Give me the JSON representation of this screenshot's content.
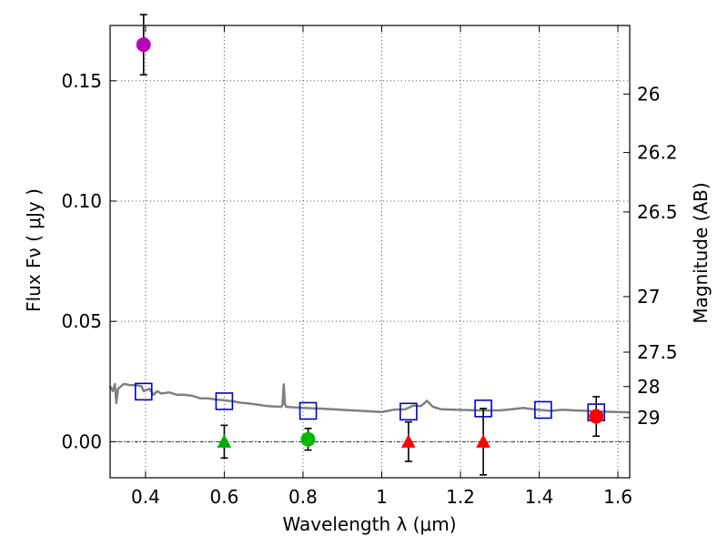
{
  "chart_data": {
    "type": "scatter",
    "xlabel": "Wavelength  λ (μm)",
    "ylabel_left": "Flux  Fν  ( μJy )",
    "ylabel_right": "Magnitude (AB)",
    "xlim": [
      0.31,
      1.63
    ],
    "ylim": [
      -0.015,
      0.173
    ],
    "x_ticks": [
      {
        "value": 0.4,
        "label": "0.4"
      },
      {
        "value": 0.6,
        "label": "0.6"
      },
      {
        "value": 0.8,
        "label": "0.8"
      },
      {
        "value": 1.0,
        "label": "1"
      },
      {
        "value": 1.2,
        "label": "1.2"
      },
      {
        "value": 1.4,
        "label": "1.4"
      },
      {
        "value": 1.6,
        "label": "1.6"
      }
    ],
    "y_ticks": [
      {
        "value": 0.0,
        "label": "0.00"
      },
      {
        "value": 0.05,
        "label": "0.05"
      },
      {
        "value": 0.1,
        "label": "0.10"
      },
      {
        "value": 0.15,
        "label": "0.15"
      }
    ],
    "right_ticks": [
      {
        "flux": 0.1445,
        "label": "26"
      },
      {
        "flux": 0.1202,
        "label": "26.2"
      },
      {
        "flux": 0.0955,
        "label": "26.5"
      },
      {
        "flux": 0.0603,
        "label": "27"
      },
      {
        "flux": 0.0372,
        "label": "27.5"
      },
      {
        "flux": 0.0229,
        "label": "28"
      },
      {
        "flux": 0.01,
        "label": "29"
      }
    ],
    "grid": true,
    "zero_line": true,
    "template_spectrum": {
      "color": "#808080",
      "points": [
        [
          0.31,
          0.023
        ],
        [
          0.317,
          0.021
        ],
        [
          0.322,
          0.024
        ],
        [
          0.326,
          0.016
        ],
        [
          0.33,
          0.022
        ],
        [
          0.345,
          0.024
        ],
        [
          0.36,
          0.0235
        ],
        [
          0.375,
          0.0235
        ],
        [
          0.39,
          0.023
        ],
        [
          0.395,
          0.021
        ],
        [
          0.41,
          0.022
        ],
        [
          0.42,
          0.0195
        ],
        [
          0.43,
          0.021
        ],
        [
          0.44,
          0.02
        ],
        [
          0.46,
          0.0205
        ],
        [
          0.48,
          0.0195
        ],
        [
          0.5,
          0.0195
        ],
        [
          0.52,
          0.019
        ],
        [
          0.54,
          0.018
        ],
        [
          0.56,
          0.018
        ],
        [
          0.58,
          0.0175
        ],
        [
          0.6,
          0.0172
        ],
        [
          0.62,
          0.0168
        ],
        [
          0.64,
          0.0162
        ],
        [
          0.66,
          0.0159
        ],
        [
          0.68,
          0.0155
        ],
        [
          0.7,
          0.015
        ],
        [
          0.72,
          0.0147
        ],
        [
          0.745,
          0.0145
        ],
        [
          0.748,
          0.0155
        ],
        [
          0.751,
          0.0238
        ],
        [
          0.754,
          0.0155
        ],
        [
          0.757,
          0.0145
        ],
        [
          0.78,
          0.0142
        ],
        [
          0.8,
          0.014
        ],
        [
          0.85,
          0.0137
        ],
        [
          0.9,
          0.0132
        ],
        [
          0.95,
          0.0128
        ],
        [
          0.98,
          0.0125
        ],
        [
          1.0,
          0.0123
        ],
        [
          1.01,
          0.0126
        ],
        [
          1.03,
          0.0133
        ],
        [
          1.06,
          0.0135
        ],
        [
          1.08,
          0.015
        ],
        [
          1.1,
          0.0148
        ],
        [
          1.115,
          0.017
        ],
        [
          1.13,
          0.0145
        ],
        [
          1.15,
          0.0135
        ],
        [
          1.2,
          0.0132
        ],
        [
          1.25,
          0.013
        ],
        [
          1.3,
          0.013
        ],
        [
          1.33,
          0.0135
        ],
        [
          1.36,
          0.014
        ],
        [
          1.37,
          0.0138
        ],
        [
          1.4,
          0.0132
        ],
        [
          1.43,
          0.0128
        ],
        [
          1.46,
          0.0133
        ],
        [
          1.49,
          0.013
        ],
        [
          1.52,
          0.0128
        ],
        [
          1.55,
          0.0125
        ],
        [
          1.6,
          0.0123
        ],
        [
          1.63,
          0.0122
        ]
      ]
    },
    "model_points": {
      "marker": "open-square",
      "color": "#0000cc",
      "points": [
        {
          "x": 0.395,
          "y": 0.0208
        },
        {
          "x": 0.6,
          "y": 0.0168
        },
        {
          "x": 0.813,
          "y": 0.0128
        },
        {
          "x": 1.068,
          "y": 0.0125
        },
        {
          "x": 1.258,
          "y": 0.0138
        },
        {
          "x": 1.41,
          "y": 0.0132
        },
        {
          "x": 1.545,
          "y": 0.0122
        }
      ]
    },
    "detections": [
      {
        "x": 0.395,
        "y": 0.165,
        "err": 0.0125,
        "color": "#bb00bb"
      },
      {
        "x": 0.813,
        "y": 0.001,
        "err": 0.0045,
        "color": "#00bb00"
      },
      {
        "x": 1.545,
        "y": 0.0105,
        "err": 0.0082,
        "color": "#ff0000"
      }
    ],
    "upper_limits": [
      {
        "x": 0.6,
        "y": 0.0,
        "err_top": 0.0068,
        "color": "#00aa00"
      },
      {
        "x": 1.068,
        "y": 0.0,
        "err_top": 0.0082,
        "color": "#ff0000"
      },
      {
        "x": 1.258,
        "y": 0.0,
        "err_top": 0.0138,
        "color": "#ff0000"
      }
    ],
    "colors": {
      "axes": "#000000",
      "grid": "#555555",
      "template": "#808080",
      "model": "#0000cc"
    }
  }
}
